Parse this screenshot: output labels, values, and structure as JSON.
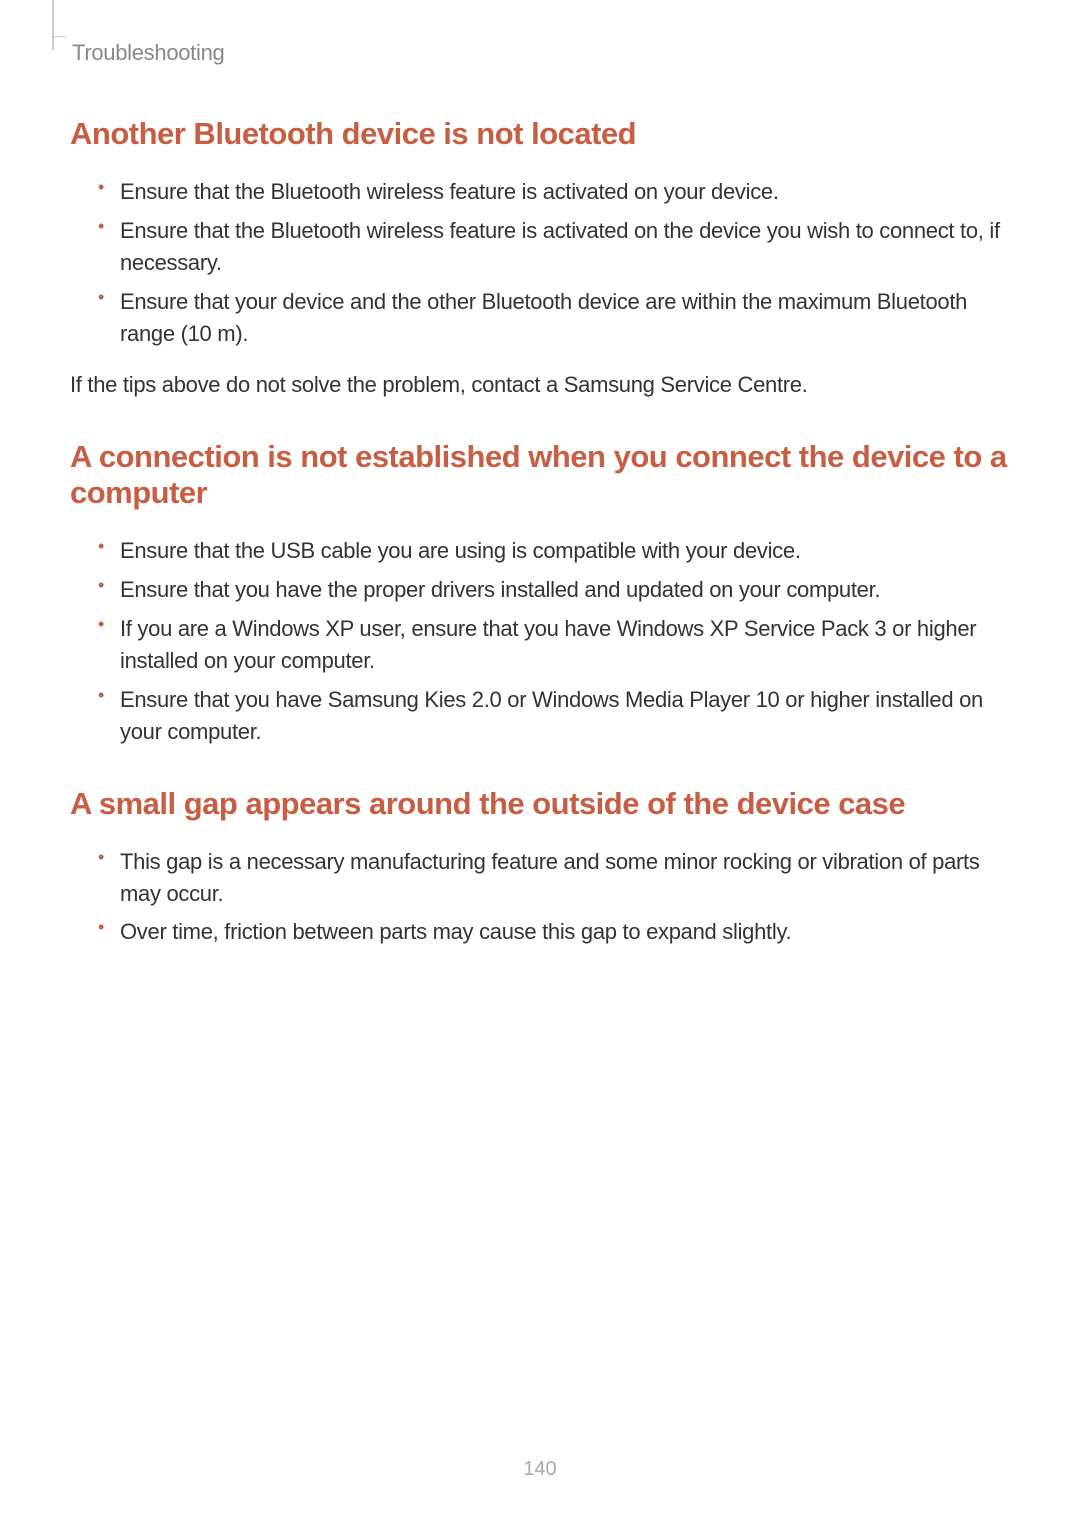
{
  "breadcrumb": "Troubleshooting",
  "page_number": "140",
  "colors": {
    "heading": "#c75d42",
    "body_text": "#333333",
    "breadcrumb": "#888888",
    "page_number": "#aaaaaa",
    "marker": "#cccccc",
    "background": "#ffffff"
  },
  "typography": {
    "heading_size": 31,
    "heading_weight": 600,
    "body_size": 22,
    "breadcrumb_size": 22,
    "page_number_size": 20
  },
  "sections": [
    {
      "heading": "Another Bluetooth device is not located",
      "bullets": [
        "Ensure that the Bluetooth wireless feature is activated on your device.",
        "Ensure that the Bluetooth wireless feature is activated on the device you wish to connect to, if necessary.",
        "Ensure that your device and the other Bluetooth device are within the maximum Bluetooth range (10 m)."
      ],
      "trailing_text": "If the tips above do not solve the problem, contact a Samsung Service Centre."
    },
    {
      "heading": "A connection is not established when you connect the device to a computer",
      "bullets": [
        "Ensure that the USB cable you are using is compatible with your device.",
        "Ensure that you have the proper drivers installed and updated on your computer.",
        "If you are a Windows XP user, ensure that you have Windows XP Service Pack 3 or higher installed on your computer.",
        "Ensure that you have Samsung Kies 2.0 or Windows Media Player 10 or higher installed on your computer."
      ]
    },
    {
      "heading": "A small gap appears around the outside of the device case",
      "bullets": [
        "This gap is a necessary manufacturing feature and some minor rocking or vibration of parts may occur.",
        "Over time, friction between parts may cause this gap to expand slightly."
      ]
    }
  ]
}
